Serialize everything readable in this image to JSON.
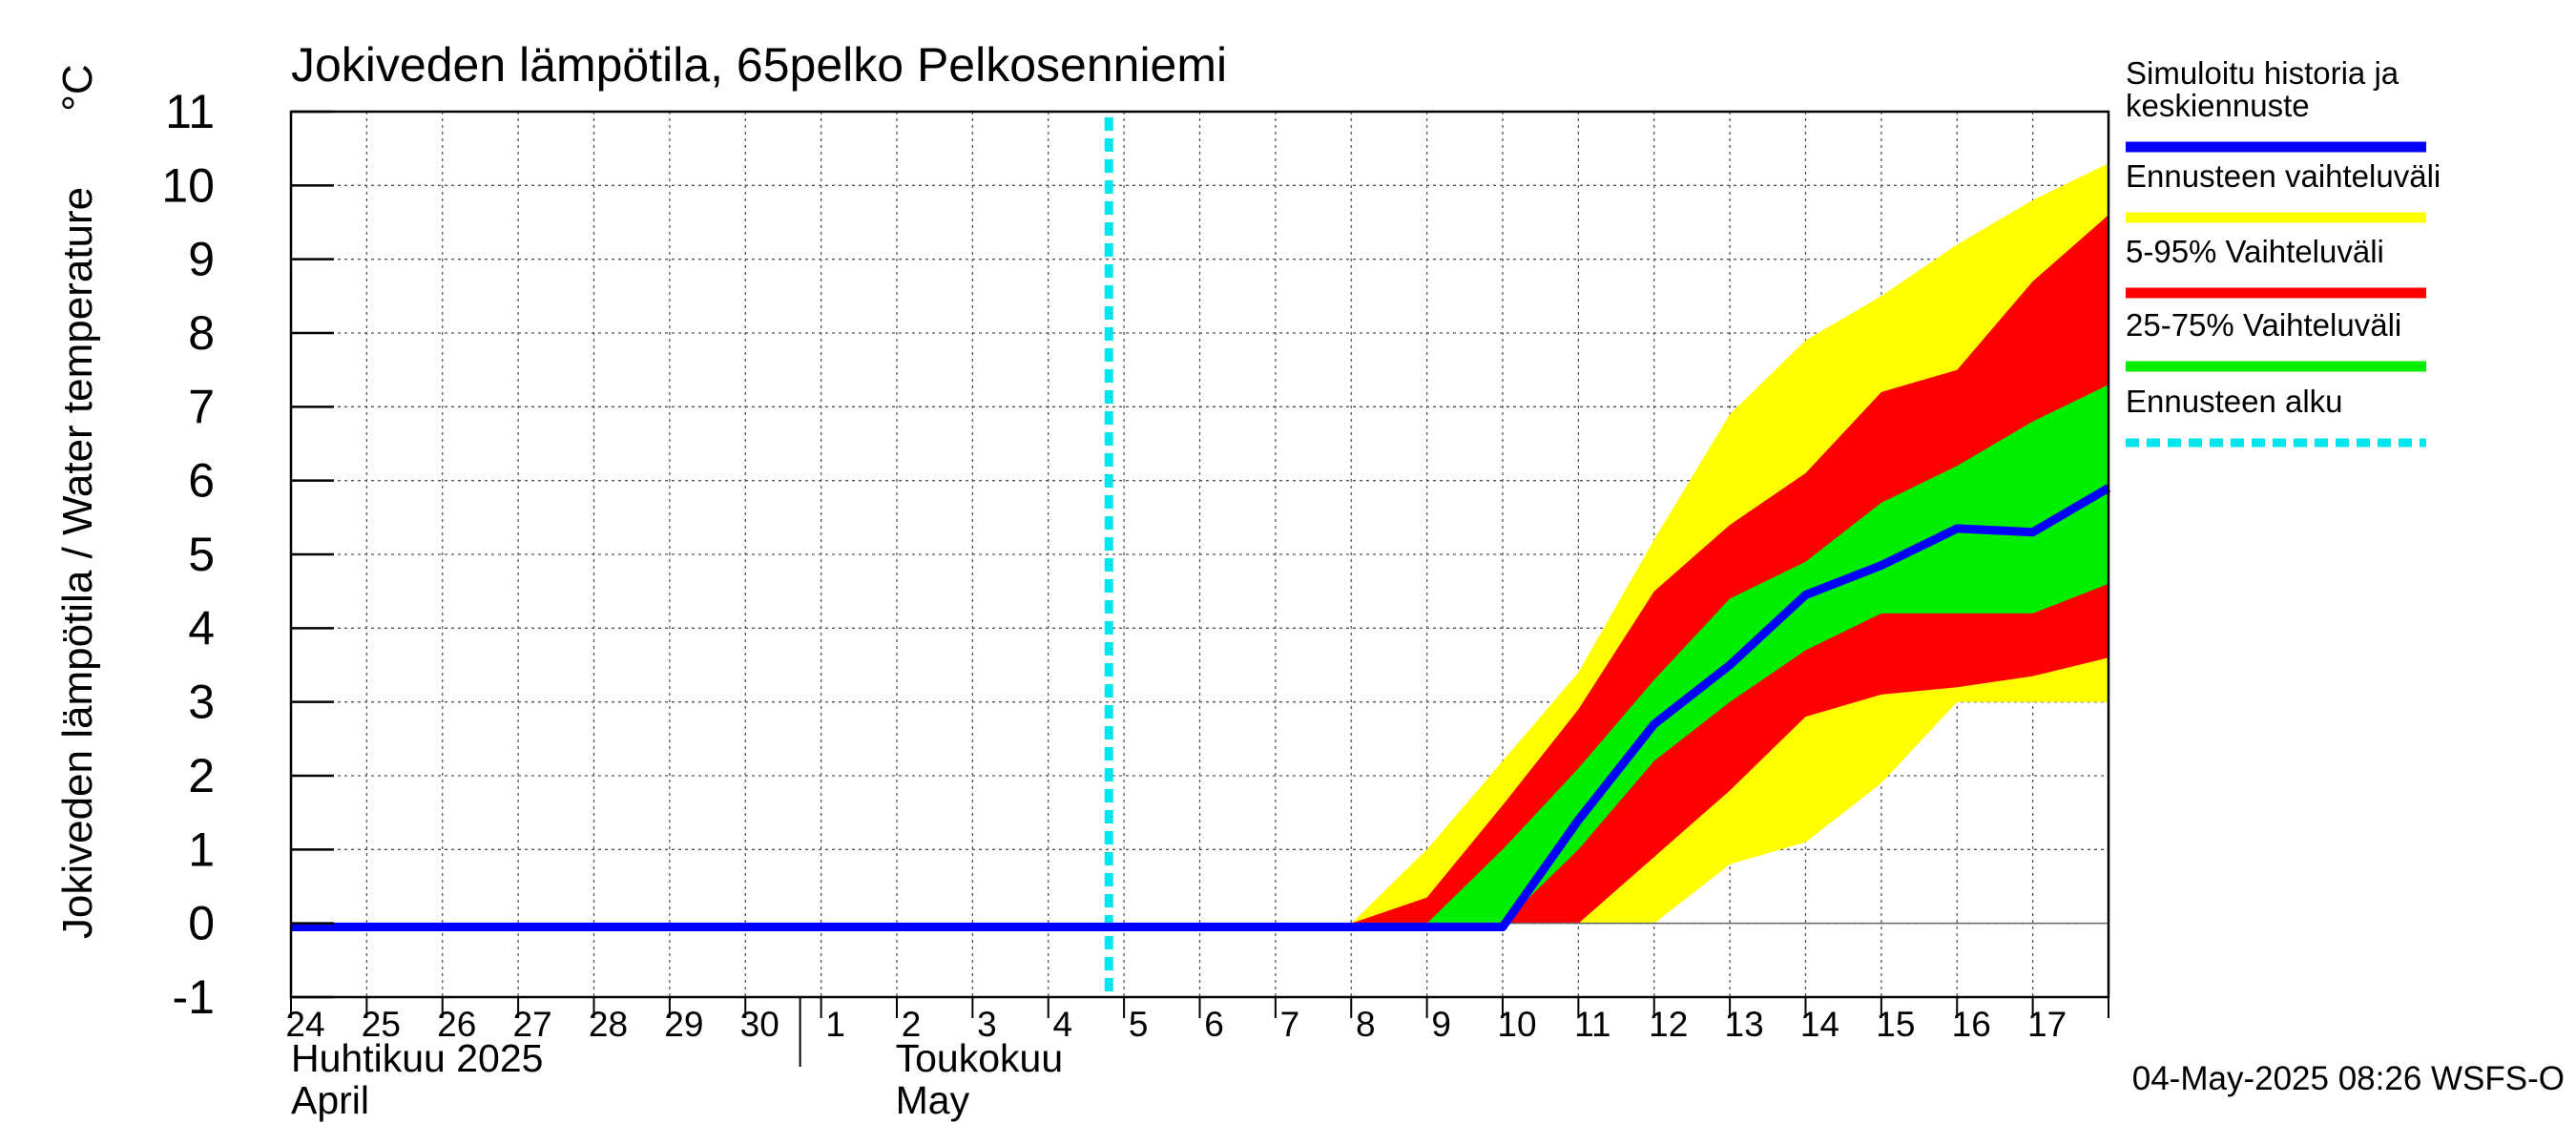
{
  "chart_data": {
    "type": "area",
    "title": "Jokiveden lämpötila, 65pelko Pelkosenniemi",
    "ylabel": "Jokiveden lämpötila / Water temperature",
    "yunit": "°C",
    "ylim": [
      -1,
      11
    ],
    "yticks": [
      -1,
      0,
      1,
      2,
      3,
      4,
      5,
      6,
      7,
      8,
      9,
      10,
      11
    ],
    "x_day_labels": [
      "24",
      "25",
      "26",
      "27",
      "28",
      "29",
      "30",
      "1",
      "2",
      "3",
      "4",
      "5",
      "6",
      "7",
      "8",
      "9",
      "10",
      "11",
      "12",
      "13",
      "14",
      "15",
      "16",
      "17"
    ],
    "month_labels": [
      {
        "fi": "Huhtikuu  2025",
        "en": "April",
        "start_day_index": 0
      },
      {
        "fi": "Toukokuu",
        "en": "May",
        "start_day_index": 7
      }
    ],
    "forecast_start_day_index": 10.8,
    "x": [
      0,
      1,
      2,
      3,
      4,
      5,
      6,
      7,
      8,
      9,
      10,
      11,
      12,
      13,
      14,
      15,
      16,
      17,
      18,
      19,
      20,
      21,
      22,
      23,
      24
    ],
    "series": [
      {
        "name": "Ennusteen vaihteluväli",
        "color": "#ffff00",
        "kind": "band",
        "low": [
          0,
          0,
          0,
          0,
          0,
          0,
          0,
          0,
          0,
          0,
          0,
          0,
          0,
          0,
          0,
          0,
          0,
          0,
          0,
          0.8,
          1.1,
          1.9,
          3.0,
          3.0,
          3.0
        ],
        "high": [
          0,
          0,
          0,
          0,
          0,
          0,
          0,
          0,
          0,
          0,
          0,
          0,
          0,
          0,
          0,
          1.0,
          2.2,
          3.4,
          5.2,
          6.9,
          7.9,
          8.5,
          9.2,
          9.8,
          10.3
        ]
      },
      {
        "name": "5-95% Vaihteluväli",
        "color": "#ff0000",
        "kind": "band",
        "low": [
          0,
          0,
          0,
          0,
          0,
          0,
          0,
          0,
          0,
          0,
          0,
          0,
          0,
          0,
          0,
          0,
          0,
          0,
          0.9,
          1.8,
          2.8,
          3.1,
          3.2,
          3.35,
          3.6
        ],
        "high": [
          0,
          0,
          0,
          0,
          0,
          0,
          0,
          0,
          0,
          0,
          0,
          0,
          0,
          0,
          0,
          0.35,
          1.6,
          2.9,
          4.5,
          5.4,
          6.1,
          7.2,
          7.5,
          8.7,
          9.6
        ]
      },
      {
        "name": "25-75% Vaihteluväli",
        "color": "#00ee00",
        "kind": "band",
        "low": [
          0,
          0,
          0,
          0,
          0,
          0,
          0,
          0,
          0,
          0,
          0,
          0,
          0,
          0,
          0,
          0,
          0,
          1.0,
          2.2,
          3.0,
          3.7,
          4.2,
          4.2,
          4.2,
          4.6
        ],
        "high": [
          0,
          0,
          0,
          0,
          0,
          0,
          0,
          0,
          0,
          0,
          0,
          0,
          0,
          0,
          0,
          0,
          1.0,
          2.1,
          3.3,
          4.4,
          4.9,
          5.7,
          6.2,
          6.8,
          7.3
        ]
      },
      {
        "name": "Simuloitu historia ja keskiennuste",
        "color": "#0000ff",
        "kind": "line",
        "values": [
          -0.05,
          -0.05,
          -0.05,
          -0.05,
          -0.05,
          -0.05,
          -0.05,
          -0.05,
          -0.05,
          -0.05,
          -0.05,
          -0.05,
          -0.05,
          -0.05,
          -0.05,
          -0.05,
          -0.05,
          1.4,
          2.7,
          3.5,
          4.45,
          4.85,
          5.35,
          5.3,
          5.9
        ]
      }
    ],
    "legend": {
      "placement": "right",
      "items": [
        {
          "label_lines": [
            "Simuloitu historia ja",
            "keskiennuste"
          ],
          "color": "#0000ff",
          "style": "line"
        },
        {
          "label_lines": [
            "Ennusteen vaihteluväli"
          ],
          "color": "#ffff00",
          "style": "line"
        },
        {
          "label_lines": [
            "5-95% Vaihteluväli"
          ],
          "color": "#ff0000",
          "style": "line"
        },
        {
          "label_lines": [
            "25-75% Vaihteluväli"
          ],
          "color": "#00ee00",
          "style": "line"
        },
        {
          "label_lines": [
            "Ennusteen alku"
          ],
          "color": "#00e5ee",
          "style": "dashed"
        }
      ]
    },
    "footer": "04-May-2025 08:26 WSFS-O"
  }
}
